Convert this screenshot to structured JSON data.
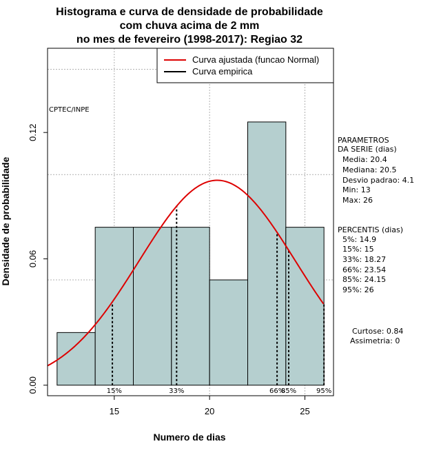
{
  "chart_data": {
    "type": "bar",
    "title_lines": [
      "Histograma e curva de densidade de probabilidade",
      "com chuva acima de 2 mm",
      "no mes de fevereiro (1998-2017): Regiao 32"
    ],
    "xlabel": "Numero de dias",
    "ylabel": "Densidade de probabilidade",
    "xlim": [
      11.5,
      26.5
    ],
    "ylim": [
      -0.005,
      0.16
    ],
    "x_ticks": [
      15,
      20,
      25
    ],
    "y_ticks": [
      0.0,
      0.06,
      0.12
    ],
    "y_tick_labels": [
      "0.00",
      "0.06",
      "0.12"
    ],
    "grid": true,
    "bins": [
      {
        "start": 12,
        "end": 14,
        "density": 0.025
      },
      {
        "start": 14,
        "end": 16,
        "density": 0.075
      },
      {
        "start": 16,
        "end": 18,
        "density": 0.075
      },
      {
        "start": 18,
        "end": 20,
        "density": 0.075
      },
      {
        "start": 20,
        "end": 22,
        "density": 0.05
      },
      {
        "start": 22,
        "end": 24,
        "density": 0.125
      },
      {
        "start": 24,
        "end": 26,
        "density": 0.075
      }
    ],
    "normal_fit": {
      "mean": 20.4,
      "sd": 4.1
    },
    "percentile_lines": [
      {
        "label": "15%",
        "x": 14.9,
        "label_x": 15
      },
      {
        "label": "33%",
        "x": 18.27,
        "label_x": 18.27
      },
      {
        "label": "66%",
        "x": 23.54,
        "label_x": 23.54
      },
      {
        "label": "85%",
        "x": 24.15,
        "label_x": 24.15
      },
      {
        "label": "95%",
        "x": 26,
        "label_x": 26
      }
    ],
    "legend": {
      "placement": "top-right",
      "entries": [
        {
          "label": "Curva ajustada (funcao Normal)",
          "color": "#dd0000"
        },
        {
          "label": "Curva empirica",
          "color": "#000000"
        }
      ]
    },
    "annotation": "CPTEC/INPE",
    "parametros": {
      "heading_1": "PARAMETROS",
      "heading_2": "DA SERIE (dias)",
      "lines": [
        "Media: 20.4",
        "Mediana: 20.5",
        "Desvio padrao: 4.1",
        "Min: 13",
        "Max: 26"
      ]
    },
    "percentis": {
      "heading": "PERCENTIS (dias)",
      "lines": [
        "5%: 14.9",
        "15%: 15",
        "33%: 18.27",
        "66%: 23.54",
        "85%: 24.15",
        "95%: 26"
      ]
    },
    "stats": {
      "curtose": "Curtose: 0.84",
      "assimetria": "Assimetria: 0"
    }
  },
  "colors": {
    "bar_fill": "#b5cfcf",
    "bar_stroke": "#000000",
    "curve": "#dd0000",
    "grid": "#b0b0b0"
  }
}
